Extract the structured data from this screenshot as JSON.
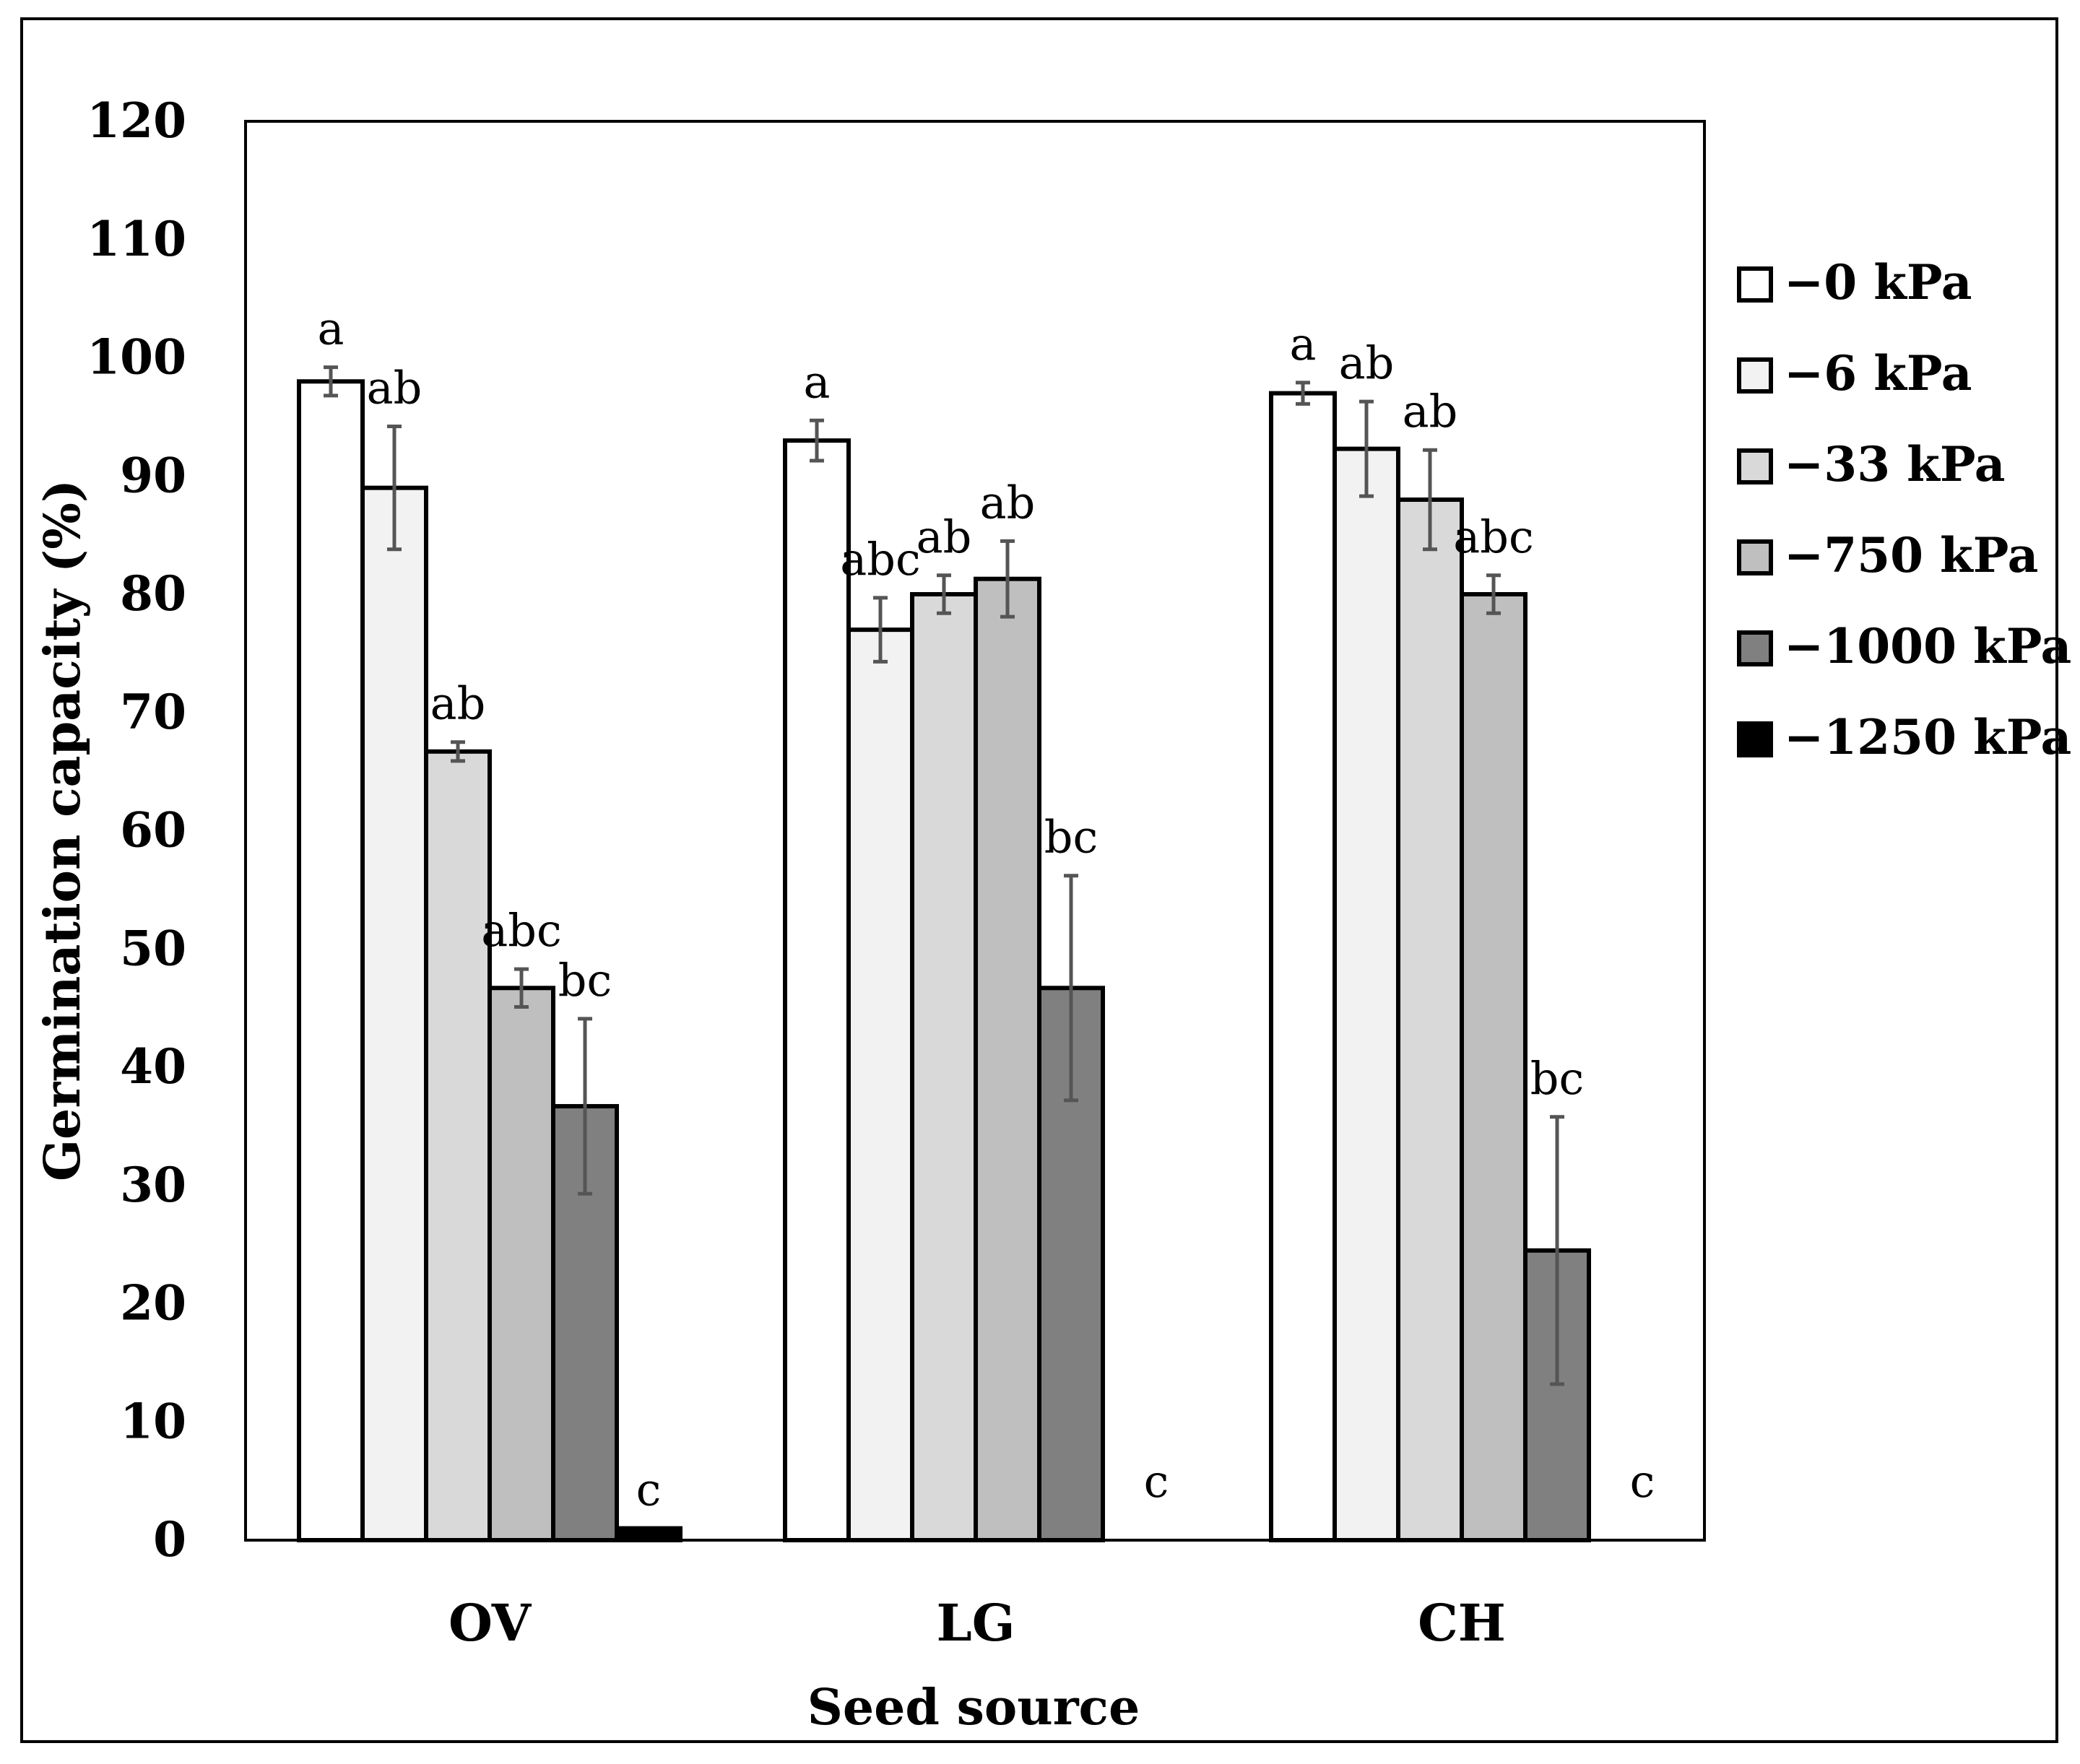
{
  "chart_data": {
    "type": "bar",
    "title": "",
    "xlabel": "Seed source",
    "ylabel": "Germination capacity (%)",
    "ylim": [
      0,
      120
    ],
    "yticks": [
      0,
      10,
      20,
      30,
      40,
      50,
      60,
      70,
      80,
      90,
      100,
      110,
      120
    ],
    "grid": false,
    "legend_position": "right",
    "categories": [
      "OV",
      "LG",
      "CH"
    ],
    "series": [
      {
        "name": "−0 kPa",
        "color": "#ffffff",
        "values": [
          98,
          93,
          97
        ],
        "errors": [
          1.2,
          1.7,
          0.9
        ],
        "letters": [
          "a",
          "a",
          "a"
        ]
      },
      {
        "name": "−6 kPa",
        "color": "#f2f2f2",
        "values": [
          89,
          77,
          92.3
        ],
        "errors": [
          5.2,
          2.7,
          4.0
        ],
        "letters": [
          "ab",
          "abc",
          "ab"
        ]
      },
      {
        "name": "−33 kPa",
        "color": "#d9d9d9",
        "values": [
          66.7,
          80,
          88
        ],
        "errors": [
          0.8,
          1.6,
          4.2
        ],
        "letters": [
          "ab",
          "ab",
          "ab"
        ]
      },
      {
        "name": "−750 kPa",
        "color": "#bfbfbf",
        "values": [
          46.7,
          81.3,
          80
        ],
        "errors": [
          1.6,
          3.2,
          1.6
        ],
        "letters": [
          "abc",
          "ab",
          "abc"
        ]
      },
      {
        "name": "−1000 kPa",
        "color": "#808080",
        "values": [
          36.7,
          46.7,
          24.5
        ],
        "errors": [
          7.4,
          9.5,
          11.3
        ],
        "letters": [
          "bc",
          "bc",
          "bc"
        ]
      },
      {
        "name": "−1250 kPa",
        "color": "#000000",
        "values": [
          1,
          0,
          0
        ],
        "errors": [
          0,
          0,
          0
        ],
        "letters": [
          "c",
          "c",
          "c"
        ]
      }
    ]
  }
}
